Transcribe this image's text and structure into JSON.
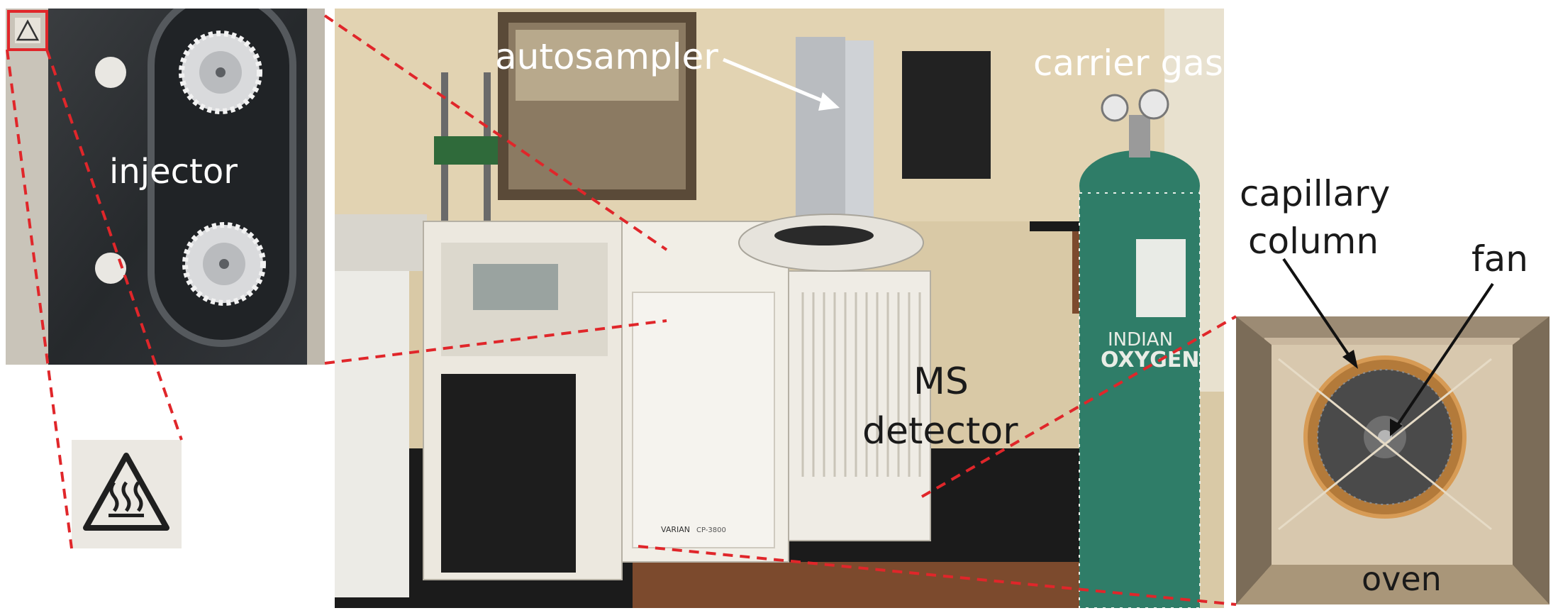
{
  "labels": {
    "injector": "injector",
    "autosampler": "autosampler",
    "carrier_gas": "carrier gas",
    "ms": "MS",
    "detector": "detector",
    "capillary": "capillary",
    "column": "column",
    "fan": "fan",
    "oven": "oven"
  },
  "instrument_text": {
    "brand": "VARIAN",
    "model": "CP-3800",
    "tank_maker": "INDIAN",
    "tank_gas": "OXYGEN"
  },
  "colors": {
    "callout_dashes": "#e0262a",
    "wall": "#d9c9a6",
    "gas_cylinder": "#2f7d68",
    "bench": "#1b1b1b",
    "instrument_body": "#ece8df",
    "oven_interior": "#b8a58d",
    "injector_plate": "#2a2d30"
  },
  "icons": [
    "hot-surface-warning-icon"
  ]
}
